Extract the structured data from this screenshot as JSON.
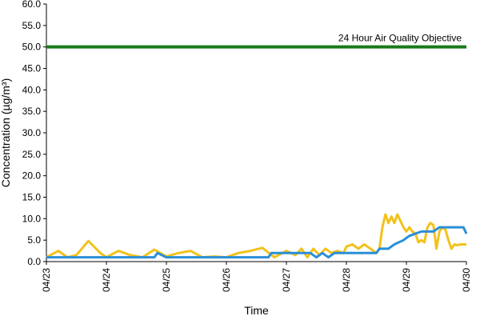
{
  "chart_data": {
    "type": "line",
    "xlabel": "Time",
    "ylabel": "Concentration (µg/m³)",
    "ylim": [
      0,
      60
    ],
    "yticks": [
      "0.0",
      "5.0",
      "10.0",
      "15.0",
      "20.0",
      "25.0",
      "30.0",
      "35.0",
      "40.0",
      "45.0",
      "50.0",
      "55.0",
      "60.0"
    ],
    "xticks": [
      "04/23",
      "04/24",
      "04/25",
      "04/26",
      "04/27",
      "04/28",
      "04/29",
      "04/30"
    ],
    "grid": false,
    "objective": {
      "label": "24 Hour Air Quality Objective",
      "value": 50,
      "color": "#1a7a1a"
    },
    "series": [
      {
        "color": "#f2c21b",
        "x": [
          0,
          0.2,
          0.35,
          0.5,
          0.7,
          0.9,
          1.0,
          1.2,
          1.4,
          1.6,
          1.8,
          2.0,
          2.2,
          2.4,
          2.6,
          2.8,
          3.0,
          3.2,
          3.4,
          3.6,
          3.8,
          4.0,
          4.15,
          4.25,
          4.35,
          4.45,
          4.55,
          4.65,
          4.75,
          4.85,
          4.95,
          5.0,
          5.1,
          5.2,
          5.3,
          5.4,
          5.5,
          5.55,
          5.6,
          5.65,
          5.7,
          5.75,
          5.8,
          5.85,
          5.9,
          5.95,
          6.0,
          6.05,
          6.1,
          6.15,
          6.2,
          6.25,
          6.3,
          6.35,
          6.4,
          6.45,
          6.5,
          6.55,
          6.6,
          6.65,
          6.7,
          6.75,
          6.8,
          6.85,
          6.9,
          6.95,
          7.0
        ],
        "y": [
          1.0,
          2.5,
          1.0,
          1.5,
          4.8,
          2.0,
          1.0,
          2.5,
          1.5,
          1.0,
          2.8,
          1.2,
          2.0,
          2.5,
          1.0,
          1.2,
          1.0,
          2.0,
          2.5,
          3.2,
          1.0,
          2.5,
          1.5,
          3.0,
          1.0,
          3.0,
          1.5,
          3.0,
          2.0,
          2.5,
          2.0,
          3.5,
          4.0,
          3.0,
          4.0,
          3.0,
          2.0,
          3.0,
          8.0,
          11.0,
          9.0,
          10.5,
          9.0,
          11.0,
          9.5,
          8.0,
          7.0,
          8.0,
          7.0,
          6.5,
          4.5,
          5.0,
          4.5,
          8.0,
          9.0,
          8.5,
          3.0,
          7.0,
          8.0,
          7.5,
          5.0,
          3.0,
          4.0,
          3.8,
          4.0,
          4.0,
          4.0
        ]
      },
      {
        "color": "#2a8fd8",
        "x": [
          0,
          0.5,
          1.0,
          1.5,
          1.8,
          1.85,
          2.0,
          2.5,
          3.0,
          3.5,
          3.7,
          3.75,
          4.0,
          4.4,
          4.5,
          4.6,
          4.7,
          4.8,
          5.0,
          5.5,
          5.55,
          5.7,
          5.8,
          5.95,
          6.05,
          6.15,
          6.25,
          6.35,
          6.45,
          6.55,
          6.65,
          6.75,
          6.85,
          6.95,
          7.0
        ],
        "y": [
          1.0,
          1.0,
          1.0,
          1.0,
          1.0,
          2.0,
          1.0,
          1.0,
          1.0,
          1.0,
          1.0,
          2.0,
          2.0,
          2.0,
          1.0,
          2.0,
          1.0,
          2.0,
          2.0,
          2.0,
          3.0,
          3.0,
          4.0,
          5.0,
          6.0,
          6.5,
          7.0,
          7.0,
          7.0,
          8.0,
          8.0,
          8.0,
          8.0,
          8.0,
          6.5
        ]
      }
    ]
  }
}
